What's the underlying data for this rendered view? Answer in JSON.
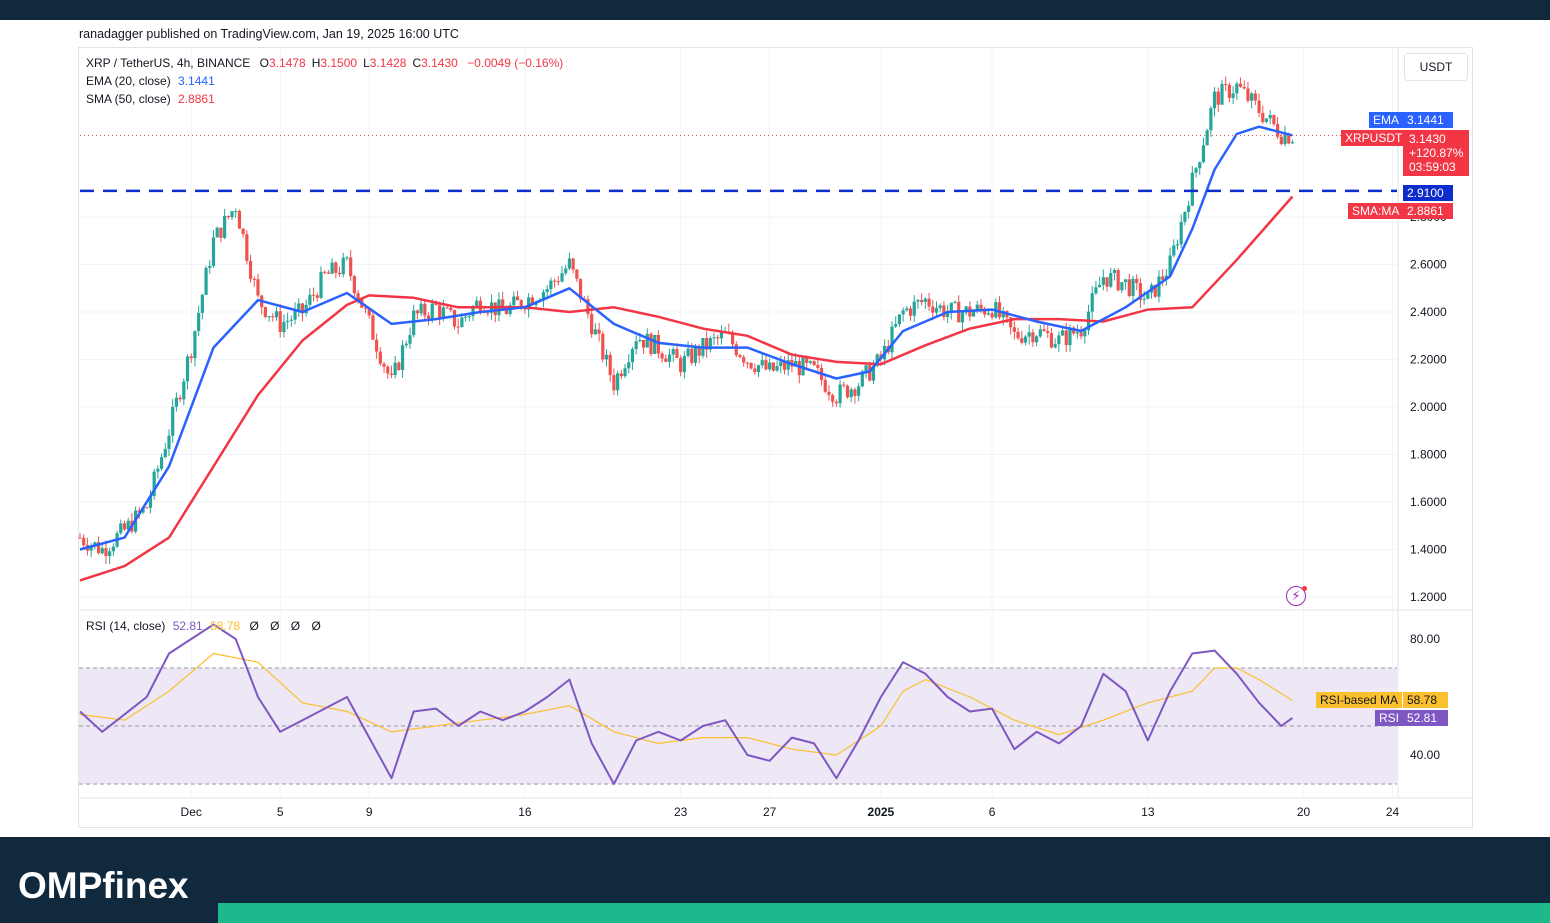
{
  "publisher_line": "ranadagger published on TradingView.com, Jan 19, 2025 16:00 UTC",
  "currency_button": "USDT",
  "brand": {
    "logo_text": "OMPfinex",
    "band_color": "#10293d",
    "stripe_color": "#1db98d"
  },
  "legend": {
    "symbol": "XRP / TetherUS, 4h, BINANCE",
    "ohlc": [
      {
        "label": "O",
        "value": "3.1478"
      },
      {
        "label": "H",
        "value": "3.1500"
      },
      {
        "label": "L",
        "value": "3.1428"
      },
      {
        "label": "C",
        "value": "3.1430"
      }
    ],
    "change": "−0.0049 (−0.16%)",
    "ema_label": "EMA (20, close)",
    "ema_value": "3.1441",
    "sma_label": "SMA (50, close)",
    "sma_value": "2.8861",
    "rsi_label": "RSI (14, close)",
    "rsi_value": "52.81",
    "rsi_ma_value": "58.78",
    "rsi_extra": "Ø Ø Ø Ø"
  },
  "tags": {
    "ema_name": "EMA",
    "ema_value": "3.1441",
    "symbol_name": "XRPUSDT",
    "price": "3.1430",
    "change_pct": "+120.87%",
    "countdown": "03:59:03",
    "level_value": "2.9100",
    "sma_name": "SMA:MA",
    "sma_value": "2.8861",
    "rsi_ma_name": "RSI-based MA",
    "rsi_ma_value": "58.78",
    "rsi_name": "RSI",
    "rsi_value": "52.81"
  },
  "colors": {
    "up": "#26a69a",
    "down": "#ef5350",
    "ema": "#2962ff",
    "sma": "#f23645",
    "level": "#0d2ecc",
    "rsi": "#7e57c2",
    "rsi_ma": "#fbc02d",
    "rsi_band": "#ede7f6"
  },
  "chart_data": [
    {
      "type": "candlestick",
      "title": "XRP / TetherUS, 4h, BINANCE",
      "y_ticks": [
        "1.2000",
        "1.4000",
        "1.6000",
        "1.8000",
        "2.0000",
        "2.2000",
        "2.4000",
        "2.6000",
        "2.8000"
      ],
      "ylim": [
        1.2,
        3.6
      ],
      "x_ticks": [
        {
          "label": "Dec",
          "day": 31
        },
        {
          "label": "5",
          "day": 35
        },
        {
          "label": "9",
          "day": 39
        },
        {
          "label": "16",
          "day": 46
        },
        {
          "label": "23",
          "day": 53
        },
        {
          "label": "27",
          "day": 57
        },
        {
          "label": "2025",
          "day": 62
        },
        {
          "label": "6",
          "day": 67
        },
        {
          "label": "13",
          "day": 74
        },
        {
          "label": "20",
          "day": 81
        },
        {
          "label": "24",
          "day": 85
        }
      ],
      "x_unit": "day (Nov 2024 = 1..30, Dec = 31..61, Jan 2025 = 62..)",
      "horizontal_level": 2.91,
      "last_price": 3.143,
      "close_path": [
        {
          "day": 26,
          "value": 1.45
        },
        {
          "day": 27,
          "value": 1.4
        },
        {
          "day": 28,
          "value": 1.48
        },
        {
          "day": 29,
          "value": 1.58
        },
        {
          "day": 30,
          "value": 1.9
        },
        {
          "day": 31,
          "value": 2.25
        },
        {
          "day": 32,
          "value": 2.7
        },
        {
          "day": 33,
          "value": 2.85
        },
        {
          "day": 34,
          "value": 2.45
        },
        {
          "day": 35,
          "value": 2.35
        },
        {
          "day": 36,
          "value": 2.4
        },
        {
          "day": 37,
          "value": 2.55
        },
        {
          "day": 38,
          "value": 2.6
        },
        {
          "day": 39,
          "value": 2.35
        },
        {
          "day": 40,
          "value": 2.1
        },
        {
          "day": 41,
          "value": 2.38
        },
        {
          "day": 42,
          "value": 2.42
        },
        {
          "day": 43,
          "value": 2.35
        },
        {
          "day": 44,
          "value": 2.45
        },
        {
          "day": 45,
          "value": 2.4
        },
        {
          "day": 46,
          "value": 2.45
        },
        {
          "day": 47,
          "value": 2.5
        },
        {
          "day": 48,
          "value": 2.6
        },
        {
          "day": 49,
          "value": 2.35
        },
        {
          "day": 50,
          "value": 2.1
        },
        {
          "day": 51,
          "value": 2.3
        },
        {
          "day": 52,
          "value": 2.25
        },
        {
          "day": 53,
          "value": 2.18
        },
        {
          "day": 54,
          "value": 2.25
        },
        {
          "day": 55,
          "value": 2.3
        },
        {
          "day": 56,
          "value": 2.2
        },
        {
          "day": 57,
          "value": 2.15
        },
        {
          "day": 58,
          "value": 2.18
        },
        {
          "day": 59,
          "value": 2.15
        },
        {
          "day": 60,
          "value": 2.05
        },
        {
          "day": 61,
          "value": 2.1
        },
        {
          "day": 62,
          "value": 2.2
        },
        {
          "day": 63,
          "value": 2.4
        },
        {
          "day": 64,
          "value": 2.45
        },
        {
          "day": 65,
          "value": 2.4
        },
        {
          "day": 66,
          "value": 2.4
        },
        {
          "day": 67,
          "value": 2.42
        },
        {
          "day": 68,
          "value": 2.3
        },
        {
          "day": 69,
          "value": 2.32
        },
        {
          "day": 70,
          "value": 2.28
        },
        {
          "day": 71,
          "value": 2.33
        },
        {
          "day": 72,
          "value": 2.55
        },
        {
          "day": 73,
          "value": 2.52
        },
        {
          "day": 74,
          "value": 2.45
        },
        {
          "day": 75,
          "value": 2.6
        },
        {
          "day": 76,
          "value": 2.95
        },
        {
          "day": 77,
          "value": 3.3
        },
        {
          "day": 78,
          "value": 3.35
        },
        {
          "day": 79,
          "value": 3.25
        },
        {
          "day": 80,
          "value": 3.15
        },
        {
          "day": 80.5,
          "value": 3.143
        }
      ],
      "series": [
        {
          "name": "EMA (20, close)",
          "last": 3.1441,
          "points": [
            {
              "day": 26,
              "value": 1.4
            },
            {
              "day": 28,
              "value": 1.45
            },
            {
              "day": 30,
              "value": 1.75
            },
            {
              "day": 32,
              "value": 2.25
            },
            {
              "day": 34,
              "value": 2.45
            },
            {
              "day": 36,
              "value": 2.4
            },
            {
              "day": 38,
              "value": 2.48
            },
            {
              "day": 40,
              "value": 2.35
            },
            {
              "day": 42,
              "value": 2.37
            },
            {
              "day": 44,
              "value": 2.4
            },
            {
              "day": 46,
              "value": 2.42
            },
            {
              "day": 48,
              "value": 2.5
            },
            {
              "day": 50,
              "value": 2.35
            },
            {
              "day": 52,
              "value": 2.27
            },
            {
              "day": 54,
              "value": 2.25
            },
            {
              "day": 56,
              "value": 2.25
            },
            {
              "day": 58,
              "value": 2.18
            },
            {
              "day": 60,
              "value": 2.12
            },
            {
              "day": 61.5,
              "value": 2.15
            },
            {
              "day": 63,
              "value": 2.32
            },
            {
              "day": 65,
              "value": 2.4
            },
            {
              "day": 67,
              "value": 2.41
            },
            {
              "day": 69,
              "value": 2.36
            },
            {
              "day": 71,
              "value": 2.32
            },
            {
              "day": 73,
              "value": 2.42
            },
            {
              "day": 75,
              "value": 2.55
            },
            {
              "day": 76,
              "value": 2.75
            },
            {
              "day": 77,
              "value": 3.0
            },
            {
              "day": 78,
              "value": 3.15
            },
            {
              "day": 79,
              "value": 3.18
            },
            {
              "day": 80.5,
              "value": 3.144
            }
          ]
        },
        {
          "name": "SMA (50, close)",
          "last": 2.8861,
          "points": [
            {
              "day": 26,
              "value": 1.27
            },
            {
              "day": 28,
              "value": 1.33
            },
            {
              "day": 30,
              "value": 1.45
            },
            {
              "day": 32,
              "value": 1.75
            },
            {
              "day": 34,
              "value": 2.05
            },
            {
              "day": 36,
              "value": 2.28
            },
            {
              "day": 38,
              "value": 2.43
            },
            {
              "day": 39,
              "value": 2.47
            },
            {
              "day": 41,
              "value": 2.46
            },
            {
              "day": 43,
              "value": 2.42
            },
            {
              "day": 46,
              "value": 2.42
            },
            {
              "day": 48,
              "value": 2.4
            },
            {
              "day": 50,
              "value": 2.42
            },
            {
              "day": 52,
              "value": 2.38
            },
            {
              "day": 54,
              "value": 2.33
            },
            {
              "day": 56,
              "value": 2.3
            },
            {
              "day": 58,
              "value": 2.22
            },
            {
              "day": 60,
              "value": 2.19
            },
            {
              "day": 62,
              "value": 2.18
            },
            {
              "day": 64,
              "value": 2.26
            },
            {
              "day": 66,
              "value": 2.33
            },
            {
              "day": 68,
              "value": 2.37
            },
            {
              "day": 70,
              "value": 2.37
            },
            {
              "day": 72,
              "value": 2.36
            },
            {
              "day": 74,
              "value": 2.41
            },
            {
              "day": 76,
              "value": 2.42
            },
            {
              "day": 78,
              "value": 2.62
            },
            {
              "day": 80.5,
              "value": 2.886
            }
          ]
        }
      ]
    },
    {
      "type": "line",
      "title": "RSI (14, close)",
      "y_ticks": [
        "40.00",
        "80.00"
      ],
      "ylim": [
        24,
        84
      ],
      "bands": {
        "upper": 70,
        "middle": 50,
        "lower": 30
      },
      "series": [
        {
          "name": "RSI",
          "last": 52.81,
          "points": [
            {
              "day": 26,
              "value": 55
            },
            {
              "day": 27,
              "value": 48
            },
            {
              "day": 28,
              "value": 54
            },
            {
              "day": 29,
              "value": 60
            },
            {
              "day": 30,
              "value": 75
            },
            {
              "day": 31,
              "value": 80
            },
            {
              "day": 32,
              "value": 85
            },
            {
              "day": 33,
              "value": 80
            },
            {
              "day": 34,
              "value": 60
            },
            {
              "day": 35,
              "value": 48
            },
            {
              "day": 36,
              "value": 52
            },
            {
              "day": 37,
              "value": 56
            },
            {
              "day": 38,
              "value": 60
            },
            {
              "day": 39,
              "value": 46
            },
            {
              "day": 40,
              "value": 32
            },
            {
              "day": 41,
              "value": 55
            },
            {
              "day": 42,
              "value": 56
            },
            {
              "day": 43,
              "value": 50
            },
            {
              "day": 44,
              "value": 55
            },
            {
              "day": 45,
              "value": 52
            },
            {
              "day": 46,
              "value": 55
            },
            {
              "day": 47,
              "value": 60
            },
            {
              "day": 48,
              "value": 66
            },
            {
              "day": 49,
              "value": 44
            },
            {
              "day": 50,
              "value": 30
            },
            {
              "day": 51,
              "value": 45
            },
            {
              "day": 52,
              "value": 48
            },
            {
              "day": 53,
              "value": 45
            },
            {
              "day": 54,
              "value": 50
            },
            {
              "day": 55,
              "value": 52
            },
            {
              "day": 56,
              "value": 40
            },
            {
              "day": 57,
              "value": 38
            },
            {
              "day": 58,
              "value": 46
            },
            {
              "day": 59,
              "value": 44
            },
            {
              "day": 60,
              "value": 32
            },
            {
              "day": 61,
              "value": 45
            },
            {
              "day": 62,
              "value": 60
            },
            {
              "day": 63,
              "value": 72
            },
            {
              "day": 64,
              "value": 68
            },
            {
              "day": 65,
              "value": 60
            },
            {
              "day": 66,
              "value": 55
            },
            {
              "day": 67,
              "value": 56
            },
            {
              "day": 68,
              "value": 42
            },
            {
              "day": 69,
              "value": 48
            },
            {
              "day": 70,
              "value": 44
            },
            {
              "day": 71,
              "value": 50
            },
            {
              "day": 72,
              "value": 68
            },
            {
              "day": 73,
              "value": 62
            },
            {
              "day": 74,
              "value": 45
            },
            {
              "day": 75,
              "value": 62
            },
            {
              "day": 76,
              "value": 75
            },
            {
              "day": 77,
              "value": 76
            },
            {
              "day": 78,
              "value": 68
            },
            {
              "day": 79,
              "value": 58
            },
            {
              "day": 80,
              "value": 50
            },
            {
              "day": 80.5,
              "value": 52.81
            }
          ]
        },
        {
          "name": "RSI-based MA",
          "last": 58.78,
          "points": [
            {
              "day": 26,
              "value": 54
            },
            {
              "day": 28,
              "value": 52
            },
            {
              "day": 30,
              "value": 62
            },
            {
              "day": 32,
              "value": 75
            },
            {
              "day": 34,
              "value": 72
            },
            {
              "day": 36,
              "value": 58
            },
            {
              "day": 38,
              "value": 55
            },
            {
              "day": 40,
              "value": 48
            },
            {
              "day": 42,
              "value": 50
            },
            {
              "day": 44,
              "value": 52
            },
            {
              "day": 46,
              "value": 54
            },
            {
              "day": 48,
              "value": 57
            },
            {
              "day": 50,
              "value": 48
            },
            {
              "day": 52,
              "value": 44
            },
            {
              "day": 54,
              "value": 46
            },
            {
              "day": 56,
              "value": 46
            },
            {
              "day": 58,
              "value": 42
            },
            {
              "day": 60,
              "value": 40
            },
            {
              "day": 62,
              "value": 50
            },
            {
              "day": 63,
              "value": 62
            },
            {
              "day": 64,
              "value": 66
            },
            {
              "day": 66,
              "value": 60
            },
            {
              "day": 68,
              "value": 52
            },
            {
              "day": 70,
              "value": 47
            },
            {
              "day": 72,
              "value": 52
            },
            {
              "day": 74,
              "value": 58
            },
            {
              "day": 76,
              "value": 62
            },
            {
              "day": 77,
              "value": 70
            },
            {
              "day": 78,
              "value": 70
            },
            {
              "day": 79,
              "value": 66
            },
            {
              "day": 80.5,
              "value": 58.78
            }
          ]
        }
      ]
    }
  ]
}
